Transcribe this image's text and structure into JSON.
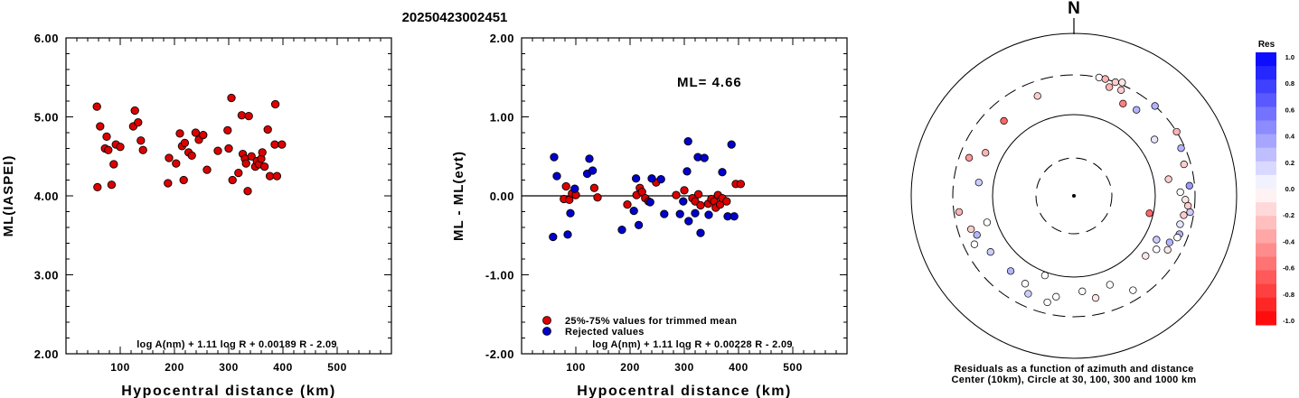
{
  "page_title": "20250423002451",
  "chart_data": [
    {
      "type": "scatter",
      "id": "ml-vs-distance",
      "xlabel": "Hypocentral distance (km)",
      "ylabel": "ML(IASPEI)",
      "xlim": [
        0,
        600
      ],
      "ylim": [
        2,
        6
      ],
      "xticks": [
        "100",
        "200",
        "300",
        "400",
        "500"
      ],
      "yticks": [
        "2.00",
        "3.00",
        "4.00",
        "5.00",
        "6.00"
      ],
      "formula": "log A(nm) + 1.11 log R + 0.00189 R - 2.09",
      "point_color": "#dd0000",
      "points": [
        [
          57,
          5.13
        ],
        [
          58,
          4.11
        ],
        [
          63,
          4.88
        ],
        [
          72,
          4.6
        ],
        [
          75,
          4.75
        ],
        [
          78,
          4.58
        ],
        [
          84,
          4.14
        ],
        [
          88,
          4.4
        ],
        [
          92,
          4.65
        ],
        [
          100,
          4.62
        ],
        [
          124,
          4.88
        ],
        [
          127,
          5.08
        ],
        [
          133,
          4.93
        ],
        [
          138,
          4.7
        ],
        [
          142,
          4.58
        ],
        [
          188,
          4.16
        ],
        [
          190,
          4.48
        ],
        [
          203,
          4.41
        ],
        [
          210,
          4.79
        ],
        [
          214,
          4.63
        ],
        [
          217,
          4.2
        ],
        [
          219,
          4.67
        ],
        [
          226,
          4.55
        ],
        [
          232,
          4.51
        ],
        [
          239,
          4.8
        ],
        [
          245,
          4.71
        ],
        [
          253,
          4.77
        ],
        [
          260,
          4.33
        ],
        [
          280,
          4.57
        ],
        [
          298,
          4.83
        ],
        [
          300,
          4.6
        ],
        [
          305,
          5.24
        ],
        [
          307,
          4.2
        ],
        [
          318,
          4.29
        ],
        [
          324,
          5.02
        ],
        [
          326,
          4.53
        ],
        [
          330,
          4.47
        ],
        [
          332,
          4.41
        ],
        [
          335,
          4.06
        ],
        [
          337,
          5.01
        ],
        [
          342,
          4.5
        ],
        [
          349,
          4.37
        ],
        [
          352,
          4.44
        ],
        [
          356,
          4.4
        ],
        [
          360,
          4.47
        ],
        [
          362,
          4.55
        ],
        [
          366,
          4.37
        ],
        [
          372,
          4.84
        ],
        [
          376,
          4.25
        ],
        [
          385,
          4.65
        ],
        [
          386,
          5.16
        ],
        [
          389,
          4.25
        ],
        [
          398,
          4.65
        ]
      ]
    },
    {
      "type": "scatter",
      "id": "residual-vs-distance",
      "xlabel": "Hypocentral distance (km)",
      "ylabel": "ML - ML(evt)",
      "xlim": [
        0,
        600
      ],
      "ylim": [
        -2,
        2
      ],
      "xticks": [
        "100",
        "200",
        "300",
        "400",
        "500"
      ],
      "yticks": [
        "-2.00",
        "-1.00",
        "0.00",
        "1.00",
        "2.00"
      ],
      "ml_label": "ML= 4.66",
      "formula": "log A(nm) + 1.11 log R + 0.00228 R - 2.09",
      "legend": [
        {
          "label": "25%-75% values for trimmed mean",
          "color": "#dd0000"
        },
        {
          "label": "Rejected values",
          "color": "#0000cc"
        }
      ],
      "series": [
        {
          "name": "25%-75% values for trimmed mean",
          "color": "#dd0000",
          "points": [
            [
              78,
              -0.04
            ],
            [
              82,
              0.12
            ],
            [
              88,
              -0.05
            ],
            [
              93,
              0.03
            ],
            [
              100,
              0.01
            ],
            [
              134,
              0.1
            ],
            [
              140,
              -0.02
            ],
            [
              195,
              -0.11
            ],
            [
              212,
              0.01
            ],
            [
              218,
              0.1
            ],
            [
              222,
              0.05
            ],
            [
              228,
              -0.03
            ],
            [
              234,
              -0.07
            ],
            [
              248,
              0.17
            ],
            [
              285,
              0.01
            ],
            [
              300,
              0.07
            ],
            [
              315,
              -0.03
            ],
            [
              320,
              -0.07
            ],
            [
              326,
              0.02
            ],
            [
              330,
              -0.12
            ],
            [
              344,
              -0.1
            ],
            [
              350,
              -0.04
            ],
            [
              355,
              -0.07
            ],
            [
              358,
              -0.15
            ],
            [
              362,
              0.01
            ],
            [
              366,
              -0.11
            ],
            [
              370,
              -0.03
            ],
            [
              378,
              -0.07
            ],
            [
              395,
              0.15
            ],
            [
              404,
              0.15
            ]
          ]
        },
        {
          "name": "Rejected values",
          "color": "#0000cc",
          "points": [
            [
              58,
              -0.52
            ],
            [
              60,
              0.49
            ],
            [
              65,
              0.25
            ],
            [
              85,
              -0.49
            ],
            [
              90,
              -0.22
            ],
            [
              98,
              0.09
            ],
            [
              121,
              0.28
            ],
            [
              125,
              0.47
            ],
            [
              131,
              0.32
            ],
            [
              185,
              -0.43
            ],
            [
              207,
              -0.19
            ],
            [
              211,
              0.22
            ],
            [
              216,
              -0.37
            ],
            [
              237,
              -0.08
            ],
            [
              240,
              0.22
            ],
            [
              257,
              0.21
            ],
            [
              263,
              -0.23
            ],
            [
              292,
              -0.23
            ],
            [
              298,
              -0.07
            ],
            [
              305,
              0.31
            ],
            [
              307,
              0.69
            ],
            [
              308,
              -0.32
            ],
            [
              320,
              -0.22
            ],
            [
              325,
              0.49
            ],
            [
              330,
              -0.47
            ],
            [
              337,
              0.48
            ],
            [
              345,
              -0.24
            ],
            [
              370,
              0.3
            ],
            [
              380,
              -0.26
            ],
            [
              387,
              0.65
            ],
            [
              392,
              -0.26
            ]
          ]
        }
      ]
    },
    {
      "type": "scatter",
      "id": "azimuth-residuals",
      "north_label": "N",
      "caption_line1": "Residuals as a function of azimuth and distance",
      "caption_line2": "Center (10km), Circle at 30, 100, 300 and 1000 km",
      "colorbar_title": "Res",
      "colorbar_ticks": [
        "1.0",
        "0.8",
        "0.6",
        "0.4",
        "0.2",
        "0.0",
        "-0.2",
        "-0.4",
        "-0.6",
        "-0.8",
        "-1.0"
      ],
      "points_polar": [
        {
          "az": 42,
          "dist": 300,
          "res": 0.3
        },
        {
          "az": 36,
          "dist": 200,
          "res": 0.3
        },
        {
          "az": 55,
          "dist": 160,
          "res": 0.1
        },
        {
          "az": 12,
          "dist": 300,
          "res": 0.0
        },
        {
          "az": 15,
          "dist": 300,
          "res": -0.3
        },
        {
          "az": 18,
          "dist": 250,
          "res": -0.3
        },
        {
          "az": 20,
          "dist": 300,
          "res": -0.2
        },
        {
          "az": 23,
          "dist": 320,
          "res": -0.1
        },
        {
          "az": 24,
          "dist": 260,
          "res": -0.2
        },
        {
          "az": 28,
          "dist": 190,
          "res": -0.5
        },
        {
          "az": 340,
          "dist": 200,
          "res": -0.2
        },
        {
          "az": 317,
          "dist": 180,
          "res": -0.6
        },
        {
          "az": 290,
          "dist": 230,
          "res": -0.4
        },
        {
          "az": 58,
          "dist": 300,
          "res": -0.3
        },
        {
          "az": 66,
          "dist": 270,
          "res": 0.3
        },
        {
          "az": 74,
          "dist": 250,
          "res": -0.2
        },
        {
          "az": 80,
          "dist": 150,
          "res": -0.2
        },
        {
          "az": 85,
          "dist": 260,
          "res": 0.4
        },
        {
          "az": 88,
          "dist": 200,
          "res": 0.0
        },
        {
          "az": 92,
          "dist": 230,
          "res": -0.1
        },
        {
          "az": 95,
          "dist": 250,
          "res": -0.2
        },
        {
          "az": 98,
          "dist": 270,
          "res": 0.2
        },
        {
          "az": 100,
          "dist": 230,
          "res": -0.2
        },
        {
          "az": 103,
          "dist": 90,
          "res": -0.6
        },
        {
          "az": 105,
          "dist": 220,
          "res": 0.1
        },
        {
          "az": 110,
          "dist": 235,
          "res": 0.3
        },
        {
          "az": 112,
          "dist": 230,
          "res": 0.0
        },
        {
          "az": 116,
          "dist": 200,
          "res": 0.3
        },
        {
          "az": 118,
          "dist": 140,
          "res": 0.2
        },
        {
          "az": 120,
          "dist": 210,
          "res": -0.1
        },
        {
          "az": 123,
          "dist": 160,
          "res": 0.0
        },
        {
          "az": 130,
          "dist": 140,
          "res": -0.1
        },
        {
          "az": 148,
          "dist": 230,
          "res": 0.0
        },
        {
          "az": 158,
          "dist": 150,
          "res": 0.0
        },
        {
          "az": 168,
          "dist": 190,
          "res": -0.1
        },
        {
          "az": 175,
          "dist": 150,
          "res": 0.0
        },
        {
          "az": 190,
          "dist": 180,
          "res": 0.0
        },
        {
          "az": 194,
          "dist": 220,
          "res": 0.0
        },
        {
          "az": 200,
          "dist": 110,
          "res": 0.0
        },
        {
          "az": 205,
          "dist": 210,
          "res": 0.2
        },
        {
          "az": 209,
          "dist": 170,
          "res": 0.0
        },
        {
          "az": 220,
          "dist": 160,
          "res": 0.3
        },
        {
          "az": 236,
          "dist": 170,
          "res": 0.2
        },
        {
          "az": 244,
          "dist": 225,
          "res": 0.0
        },
        {
          "az": 248,
          "dist": 190,
          "res": 0.3
        },
        {
          "az": 252,
          "dist": 210,
          "res": -0.2
        },
        {
          "az": 253,
          "dist": 130,
          "res": 0.0
        },
        {
          "az": 262,
          "dist": 260,
          "res": -0.3
        },
        {
          "az": 278,
          "dist": 150,
          "res": 0.2
        },
        {
          "az": 296,
          "dist": 160,
          "res": -0.3
        }
      ]
    }
  ]
}
